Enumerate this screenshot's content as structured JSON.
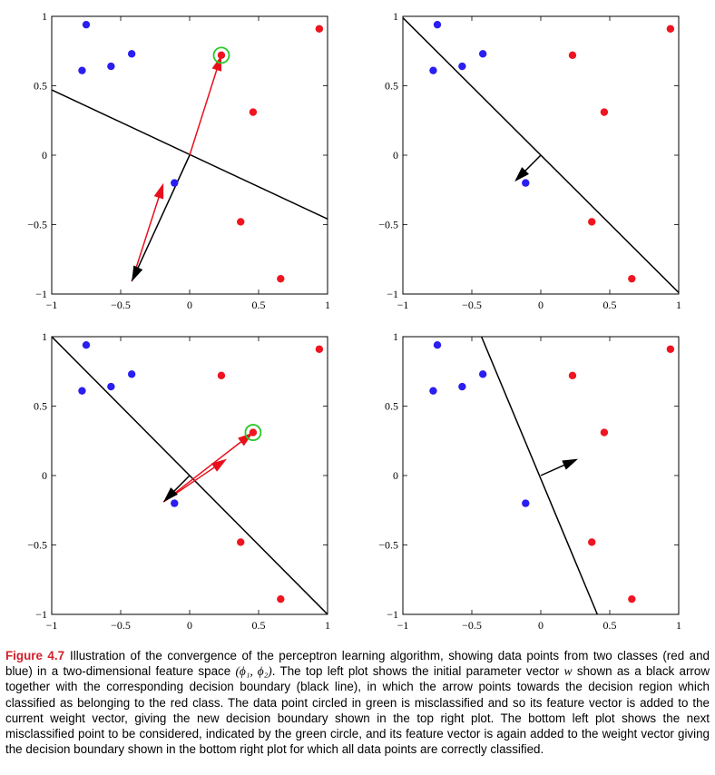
{
  "colors": {
    "red_class": "#ef1520",
    "blue_class": "#2a1ef0",
    "weight_arrow": "#000000",
    "feature_arrow": "#e8101c",
    "highlight": "#27c927",
    "caption_label": "#d1202a"
  },
  "chart_data": [
    {
      "type": "scatter",
      "panel": "top-left",
      "xlim": [
        -1,
        1
      ],
      "ylim": [
        -1,
        1
      ],
      "xticks": [
        "−1",
        "−0.5",
        "0",
        "0.5",
        "1"
      ],
      "yticks": [
        "1",
        "0.5",
        "0",
        "−0.5",
        "−1"
      ],
      "series": [
        {
          "color": "blue",
          "points": [
            [
              -0.75,
              0.94
            ],
            [
              -0.78,
              0.61
            ],
            [
              -0.57,
              0.64
            ],
            [
              -0.42,
              0.73
            ],
            [
              -0.11,
              -0.2
            ]
          ]
        },
        {
          "color": "red",
          "points": [
            [
              0.94,
              0.91
            ],
            [
              0.23,
              0.72
            ],
            [
              0.46,
              0.31
            ],
            [
              0.37,
              -0.48
            ],
            [
              0.66,
              -0.89
            ]
          ]
        }
      ],
      "boundary": [
        [
          -1,
          0.47
        ],
        [
          1,
          -0.46
        ]
      ],
      "weight_vector": {
        "from": [
          0,
          0
        ],
        "to": [
          -0.42,
          -0.91
        ]
      },
      "feature_vector": {
        "from": [
          -0.42,
          -0.91
        ],
        "to": [
          -0.19,
          -0.2
        ]
      },
      "sum_vector": {
        "from": [
          0,
          0
        ],
        "to": [
          0.23,
          0.72
        ]
      },
      "highlighted_point": [
        0.23,
        0.72
      ]
    },
    {
      "type": "scatter",
      "panel": "top-right",
      "xlim": [
        -1,
        1
      ],
      "ylim": [
        -1,
        1
      ],
      "xticks": [
        "−1",
        "−0.5",
        "0",
        "0.5",
        "1"
      ],
      "yticks": [
        "1",
        "0.5",
        "0",
        "−0.5",
        "−1"
      ],
      "series": [
        {
          "color": "blue",
          "points": [
            [
              -0.75,
              0.94
            ],
            [
              -0.78,
              0.61
            ],
            [
              -0.57,
              0.64
            ],
            [
              -0.42,
              0.73
            ],
            [
              -0.11,
              -0.2
            ]
          ]
        },
        {
          "color": "red",
          "points": [
            [
              0.94,
              0.91
            ],
            [
              0.23,
              0.72
            ],
            [
              0.46,
              0.31
            ],
            [
              0.37,
              -0.48
            ],
            [
              0.66,
              -0.89
            ]
          ]
        }
      ],
      "boundary": [
        [
          -1,
          0.99
        ],
        [
          1,
          -0.99
        ]
      ],
      "weight_vector": {
        "from": [
          0,
          0
        ],
        "to": [
          -0.19,
          -0.19
        ]
      }
    },
    {
      "type": "scatter",
      "panel": "bottom-left",
      "xlim": [
        -1,
        1
      ],
      "ylim": [
        -1,
        1
      ],
      "xticks": [
        "−1",
        "−0.5",
        "0",
        "0.5",
        "1"
      ],
      "yticks": [
        "1",
        "0.5",
        "0",
        "−0.5",
        "−1"
      ],
      "series": [
        {
          "color": "blue",
          "points": [
            [
              -0.75,
              0.94
            ],
            [
              -0.78,
              0.61
            ],
            [
              -0.57,
              0.64
            ],
            [
              -0.42,
              0.73
            ],
            [
              -0.11,
              -0.2
            ]
          ]
        },
        {
          "color": "red",
          "points": [
            [
              0.94,
              0.91
            ],
            [
              0.23,
              0.72
            ],
            [
              0.46,
              0.31
            ],
            [
              0.37,
              -0.48
            ],
            [
              0.66,
              -0.89
            ]
          ]
        }
      ],
      "boundary": [
        [
          -1,
          1.0
        ],
        [
          1,
          -1.0
        ]
      ],
      "weight_vector": {
        "from": [
          0,
          0
        ],
        "to": [
          -0.19,
          -0.19
        ]
      },
      "feature_vector": {
        "from": [
          -0.19,
          -0.19
        ],
        "to": [
          0.27,
          0.12
        ]
      },
      "sum_vector": {
        "from": [
          -0.19,
          -0.19
        ],
        "to": [
          0.46,
          0.31
        ]
      },
      "highlighted_point": [
        0.46,
        0.31
      ]
    },
    {
      "type": "scatter",
      "panel": "bottom-right",
      "xlim": [
        -1,
        1
      ],
      "ylim": [
        -1,
        1
      ],
      "xticks": [
        "−1",
        "−0.5",
        "0",
        "0.5",
        "1"
      ],
      "yticks": [
        "1",
        "0.5",
        "0",
        "−0.5",
        "−1"
      ],
      "series": [
        {
          "color": "blue",
          "points": [
            [
              -0.75,
              0.94
            ],
            [
              -0.78,
              0.61
            ],
            [
              -0.57,
              0.64
            ],
            [
              -0.42,
              0.73
            ],
            [
              -0.11,
              -0.2
            ]
          ]
        },
        {
          "color": "red",
          "points": [
            [
              0.94,
              0.91
            ],
            [
              0.23,
              0.72
            ],
            [
              0.46,
              0.31
            ],
            [
              0.37,
              -0.48
            ],
            [
              0.66,
              -0.89
            ]
          ]
        }
      ],
      "boundary": [
        [
          -0.43,
          1.0
        ],
        [
          0.41,
          -1.0
        ]
      ],
      "weight_vector": {
        "from": [
          0,
          0
        ],
        "to": [
          0.27,
          0.12
        ]
      }
    }
  ],
  "caption": {
    "label": "Figure 4.7",
    "part1": "Illustration of the convergence of the perceptron learning algorithm, showing data points from two classes (red and blue) in a two-dimensional feature space ",
    "space": "(ϕ₁, ϕ₂)",
    "part2": ". The top left plot shows the initial parameter vector ",
    "vector": "w",
    "part3": " shown as a black arrow together with the corresponding decision boundary (black line), in which the arrow points towards the decision region which classified as belonging to the red class. The data point circled in green is misclassified and so its feature vector is added to the current weight vector, giving the new decision boundary shown in the top right plot. The bottom left plot shows the next misclassified point to be considered, indicated by the green circle, and its feature vector is again added to the weight vector giving the decision boundary shown in the bottom right plot for which all data points are correctly classified."
  }
}
